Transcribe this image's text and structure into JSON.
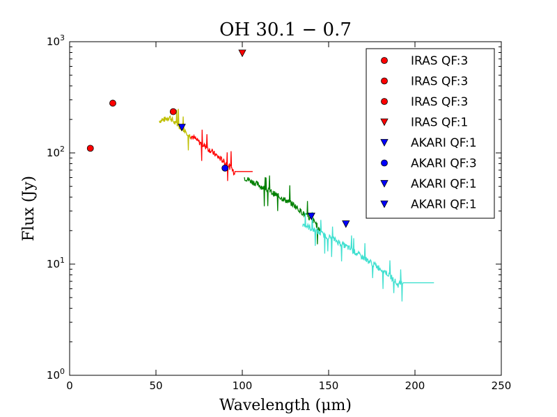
{
  "chart_data": {
    "type": "scatter",
    "title": "OH 30.1 − 0.7",
    "xlabel": "Wavelength (μm)",
    "ylabel": "Flux (Jy)",
    "xlim": [
      0,
      250
    ],
    "ylim": [
      1,
      1000
    ],
    "yscale": "log",
    "grid": false,
    "legend_position": "top-right",
    "x_ticks": [
      "0",
      "50",
      "100",
      "150",
      "200",
      "250"
    ],
    "y_ticks": [
      {
        "value": 1,
        "base": "10",
        "exp": "0"
      },
      {
        "value": 10,
        "base": "10",
        "exp": "1"
      },
      {
        "value": 100,
        "base": "10",
        "exp": "2"
      },
      {
        "value": 1000,
        "base": "10",
        "exp": "3"
      }
    ],
    "spectra": [
      {
        "name": "spectrum-yellow",
        "color": "#bfbf00",
        "points": [
          [
            52,
            195
          ],
          [
            55,
            200
          ],
          [
            58,
            210
          ],
          [
            61,
            185
          ],
          [
            64,
            170
          ],
          [
            67,
            160
          ],
          [
            70,
            140
          ]
        ]
      },
      {
        "name": "spectrum-red",
        "color": "#ff0000",
        "points": [
          [
            70,
            145
          ],
          [
            75,
            125
          ],
          [
            80,
            110
          ],
          [
            85,
            95
          ],
          [
            90,
            82
          ],
          [
            94,
            72
          ],
          [
            95,
            68
          ],
          [
            106,
            68
          ]
        ]
      },
      {
        "name": "spectrum-green",
        "color": "#008000",
        "points": [
          [
            101,
            60
          ],
          [
            108,
            53
          ],
          [
            115,
            46
          ],
          [
            122,
            40
          ],
          [
            130,
            34
          ],
          [
            137,
            27
          ],
          [
            142,
            24
          ],
          [
            145,
            20
          ]
        ]
      },
      {
        "name": "spectrum-cyan",
        "color": "#40e0d0",
        "points": [
          [
            135,
            23
          ],
          [
            145,
            19
          ],
          [
            152,
            17
          ],
          [
            160,
            14.5
          ],
          [
            168,
            12
          ],
          [
            176,
            10
          ],
          [
            183,
            8.5
          ],
          [
            188,
            7.2
          ],
          [
            190,
            6.5
          ],
          [
            193,
            6.8
          ],
          [
            200,
            6.8
          ],
          [
            211,
            6.8
          ]
        ]
      }
    ],
    "series": [
      {
        "name": "IRAS QF:3",
        "marker": "circle",
        "color": "#ff0000",
        "x": 12,
        "y": 110
      },
      {
        "name": "IRAS QF:3",
        "marker": "circle",
        "color": "#ff0000",
        "x": 25,
        "y": 280
      },
      {
        "name": "IRAS QF:3",
        "marker": "circle",
        "color": "#ff0000",
        "x": 60,
        "y": 235
      },
      {
        "name": "IRAS QF:1",
        "marker": "triangle-down",
        "color": "#ff0000",
        "x": 100,
        "y": 790
      },
      {
        "name": "AKARI QF:1",
        "marker": "triangle-down",
        "color": "#0000ff",
        "x": 65,
        "y": 170
      },
      {
        "name": "AKARI QF:3",
        "marker": "circle",
        "color": "#0000ff",
        "x": 90,
        "y": 73
      },
      {
        "name": "AKARI QF:1",
        "marker": "triangle-down",
        "color": "#0000ff",
        "x": 140,
        "y": 27
      },
      {
        "name": "AKARI QF:1",
        "marker": "triangle-down",
        "color": "#0000ff",
        "x": 160,
        "y": 23
      }
    ]
  }
}
